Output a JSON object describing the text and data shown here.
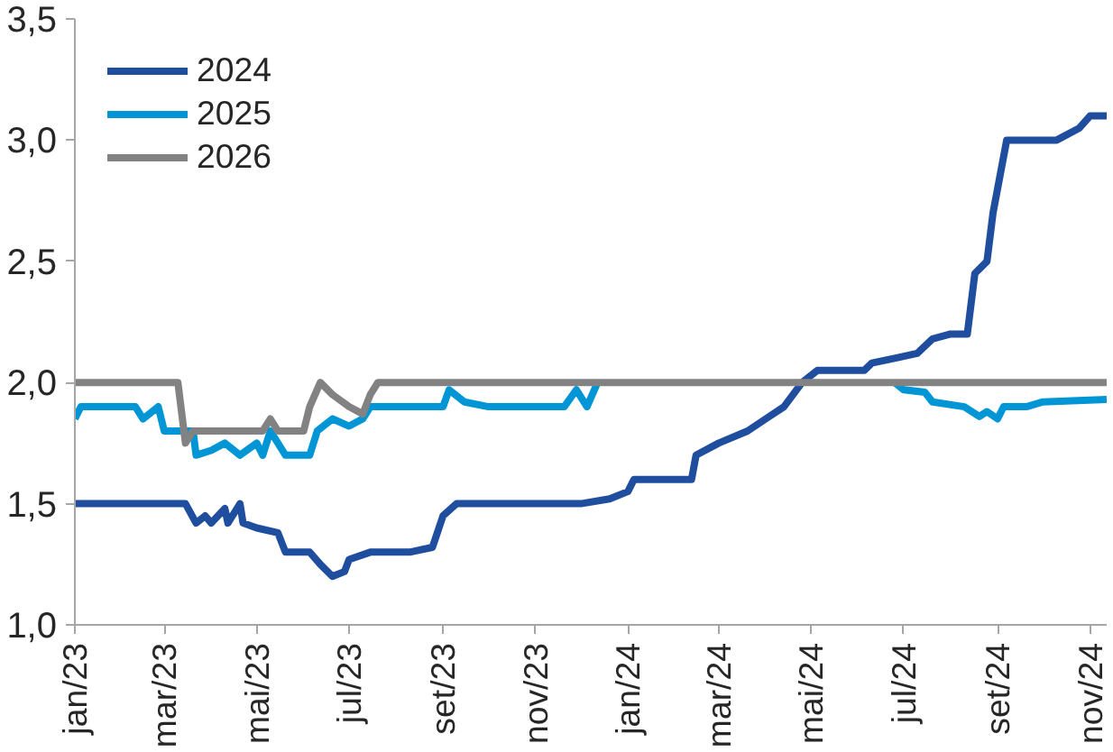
{
  "chart_data": {
    "type": "line",
    "legend": "top left",
    "grid": false,
    "line_style": "solid",
    "marker": "none",
    "xlim": [
      "2023-01-01",
      "2024-11-12"
    ],
    "xticks": [
      {
        "value": "2023-01-01",
        "label": "jan/23"
      },
      {
        "value": "2023-03-01",
        "label": "mar/23"
      },
      {
        "value": "2023-05-01",
        "label": "mai/23"
      },
      {
        "value": "2023-07-01",
        "label": "jul/23"
      },
      {
        "value": "2023-09-01",
        "label": "set/23"
      },
      {
        "value": "2023-11-01",
        "label": "nov/23"
      },
      {
        "value": "2024-01-01",
        "label": "jan/24"
      },
      {
        "value": "2024-03-01",
        "label": "mar/24"
      },
      {
        "value": "2024-05-01",
        "label": "mai/24"
      },
      {
        "value": "2024-07-01",
        "label": "jul/24"
      },
      {
        "value": "2024-09-01",
        "label": "set/24"
      },
      {
        "value": "2024-11-01",
        "label": "nov/24"
      }
    ],
    "ylim": [
      1.0,
      3.5
    ],
    "yticks": [
      {
        "value": 1.0,
        "label": "1,0"
      },
      {
        "value": 1.5,
        "label": "1,5"
      },
      {
        "value": 2.0,
        "label": "2,0"
      },
      {
        "value": 2.5,
        "label": "2,5"
      },
      {
        "value": 3.0,
        "label": "3,0"
      },
      {
        "value": 3.5,
        "label": "3,5"
      }
    ],
    "series": [
      {
        "name": "2024",
        "color": "#1f4e9f",
        "x": [
          "2023-01-01",
          "2023-03-15",
          "2023-03-22",
          "2023-03-28",
          "2023-04-01",
          "2023-04-10",
          "2023-04-12",
          "2023-04-20",
          "2023-04-22",
          "2023-05-01",
          "2023-05-15",
          "2023-05-20",
          "2023-06-05",
          "2023-06-12",
          "2023-06-20",
          "2023-06-28",
          "2023-07-01",
          "2023-07-15",
          "2023-08-10",
          "2023-08-25",
          "2023-09-01",
          "2023-09-10",
          "2023-10-01",
          "2023-12-01",
          "2023-12-20",
          "2024-01-01",
          "2024-01-05",
          "2024-02-12",
          "2024-02-15",
          "2024-03-01",
          "2024-03-20",
          "2024-04-01",
          "2024-04-13",
          "2024-04-25",
          "2024-05-05",
          "2024-05-20",
          "2024-06-05",
          "2024-06-10",
          "2024-06-25",
          "2024-07-10",
          "2024-07-20",
          "2024-08-01",
          "2024-08-12",
          "2024-08-17",
          "2024-08-25",
          "2024-08-29",
          "2024-09-07",
          "2024-10-10",
          "2024-10-25",
          "2024-11-01",
          "2024-11-12"
        ],
        "values": [
          1.5,
          1.5,
          1.42,
          1.45,
          1.42,
          1.48,
          1.42,
          1.5,
          1.42,
          1.4,
          1.38,
          1.3,
          1.3,
          1.25,
          1.2,
          1.22,
          1.27,
          1.3,
          1.3,
          1.32,
          1.45,
          1.5,
          1.5,
          1.5,
          1.52,
          1.55,
          1.6,
          1.6,
          1.7,
          1.75,
          1.8,
          1.85,
          1.9,
          2.0,
          2.05,
          2.05,
          2.05,
          2.08,
          2.1,
          2.12,
          2.18,
          2.2,
          2.2,
          2.45,
          2.5,
          2.7,
          3.0,
          3.0,
          3.05,
          3.1,
          3.1
        ]
      },
      {
        "name": "2025",
        "color": "#0096d6",
        "x": [
          "2023-01-01",
          "2023-01-05",
          "2023-02-10",
          "2023-02-15",
          "2023-02-25",
          "2023-03-01",
          "2023-03-20",
          "2023-03-22",
          "2023-04-01",
          "2023-04-10",
          "2023-04-20",
          "2023-05-01",
          "2023-05-05",
          "2023-05-10",
          "2023-05-20",
          "2023-06-05",
          "2023-06-10",
          "2023-06-20",
          "2023-07-01",
          "2023-07-10",
          "2023-07-15",
          "2023-09-01",
          "2023-09-05",
          "2023-09-15",
          "2023-10-01",
          "2023-11-20",
          "2023-11-28",
          "2023-12-05",
          "2023-12-12",
          "2024-03-01",
          "2024-06-25",
          "2024-07-01",
          "2024-07-15",
          "2024-07-20",
          "2024-08-10",
          "2024-08-20",
          "2024-08-25",
          "2024-09-01",
          "2024-09-05",
          "2024-09-20",
          "2024-10-01",
          "2024-11-12"
        ],
        "values": [
          1.85,
          1.9,
          1.9,
          1.85,
          1.9,
          1.8,
          1.8,
          1.7,
          1.72,
          1.75,
          1.7,
          1.75,
          1.7,
          1.8,
          1.7,
          1.7,
          1.8,
          1.85,
          1.82,
          1.85,
          1.9,
          1.9,
          1.97,
          1.92,
          1.9,
          1.9,
          1.97,
          1.9,
          2.0,
          null,
          2.0,
          1.97,
          1.96,
          1.92,
          1.9,
          1.86,
          1.88,
          1.85,
          1.9,
          1.9,
          1.92,
          1.93
        ]
      },
      {
        "name": "2026",
        "color": "#828282",
        "x": [
          "2023-01-01",
          "2023-03-10",
          "2023-03-15",
          "2023-03-20",
          "2023-05-05",
          "2023-05-10",
          "2023-05-15",
          "2023-06-01",
          "2023-06-05",
          "2023-06-12",
          "2023-06-20",
          "2023-07-01",
          "2023-07-10",
          "2023-07-15",
          "2023-07-20",
          "2024-11-12"
        ],
        "values": [
          2.0,
          2.0,
          1.75,
          1.8,
          1.8,
          1.85,
          1.8,
          1.8,
          1.9,
          2.0,
          1.95,
          1.9,
          1.87,
          1.95,
          2.0,
          2.0
        ]
      }
    ]
  }
}
